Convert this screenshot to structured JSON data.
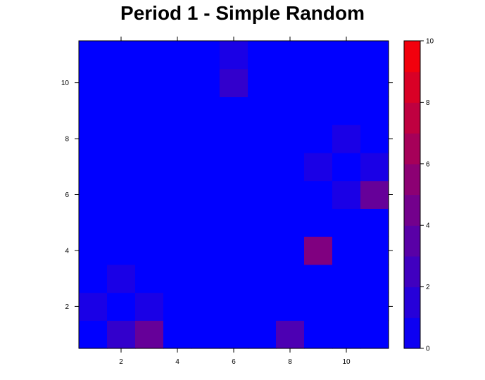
{
  "chart_data": {
    "type": "heatmap",
    "title": "Period 1 - Simple Random",
    "xlabel": "",
    "ylabel": "",
    "x": [
      1,
      2,
      3,
      4,
      5,
      6,
      7,
      8,
      9,
      10,
      11
    ],
    "y": [
      1,
      2,
      3,
      4,
      5,
      6,
      7,
      8,
      9,
      10,
      11
    ],
    "x_ticks": [
      "2",
      "4",
      "6",
      "8",
      "10"
    ],
    "y_ticks": [
      "2",
      "4",
      "6",
      "8",
      "10"
    ],
    "xlim": [
      0.5,
      11.5
    ],
    "ylim": [
      0.5,
      11.5
    ],
    "z": [
      [
        0,
        2,
        4,
        0,
        0,
        0,
        0,
        3,
        0,
        0,
        0
      ],
      [
        1,
        0,
        1,
        0,
        0,
        0,
        0,
        0,
        0,
        0,
        0
      ],
      [
        0,
        1,
        0,
        0,
        0,
        0,
        0,
        0,
        0,
        0,
        0
      ],
      [
        0,
        0,
        0,
        0,
        0,
        0,
        0,
        0,
        5,
        0,
        0
      ],
      [
        0,
        0,
        0,
        0,
        0,
        0,
        0,
        0,
        0,
        0,
        0
      ],
      [
        0,
        0,
        0,
        0,
        0,
        0,
        0,
        0,
        0,
        1,
        4
      ],
      [
        0,
        0,
        0,
        0,
        0,
        0,
        0,
        0,
        1,
        0,
        1
      ],
      [
        0,
        0,
        0,
        0,
        0,
        0,
        0,
        0,
        0,
        1,
        0
      ],
      [
        0,
        0,
        0,
        0,
        0,
        0,
        0,
        0,
        0,
        0,
        0
      ],
      [
        0,
        0,
        0,
        0,
        0,
        2,
        0,
        0,
        0,
        0,
        0
      ],
      [
        0,
        0,
        0,
        0,
        0,
        1,
        0,
        0,
        0,
        0,
        0
      ]
    ],
    "colorbar": {
      "min": 0,
      "max": 10,
      "ticks": [
        "0",
        "2",
        "4",
        "6",
        "8",
        "10"
      ],
      "low_color": "#0000ff",
      "high_color": "#ff0000",
      "levels": 10
    },
    "grid": false,
    "legend": "right"
  }
}
